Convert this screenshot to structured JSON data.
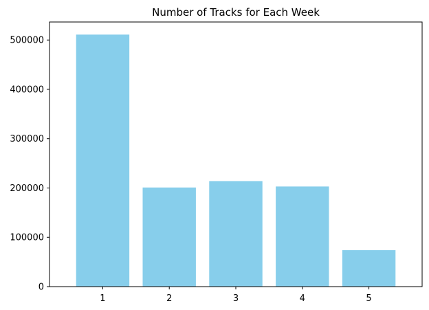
{
  "chart_data": {
    "type": "bar",
    "title": "Number of Tracks for Each Week",
    "xlabel": "",
    "ylabel": "",
    "categories": [
      "1",
      "2",
      "3",
      "4",
      "5"
    ],
    "values": [
      511000,
      201000,
      214000,
      203000,
      74000
    ],
    "ylim": [
      0,
      536550
    ],
    "yticks": [
      0,
      100000,
      200000,
      300000,
      400000,
      500000
    ],
    "ytick_labels": [
      "0",
      "100000",
      "200000",
      "300000",
      "400000",
      "500000"
    ],
    "bar_color": "#87CEEB",
    "grid": false,
    "legend": "none"
  }
}
